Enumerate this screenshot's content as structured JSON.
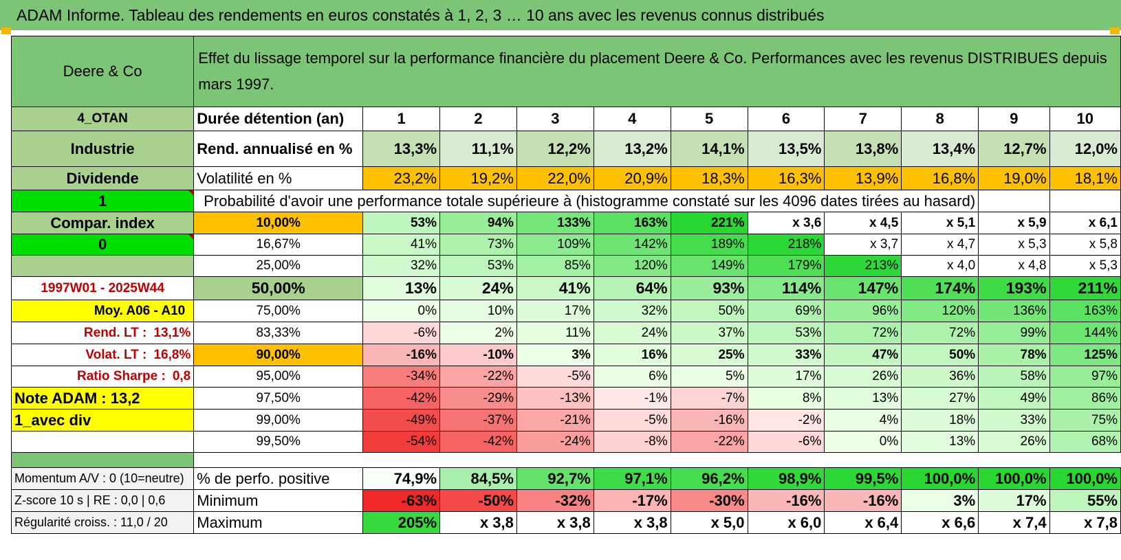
{
  "title": "ADAM Informe. Tableau des rendements en euros constatés à 1, 2, 3 … 10 ans avec les revenus connus distribués",
  "header": {
    "company": "Deere & Co",
    "description": "Effet du lissage temporel sur la performance financière du placement Deere & Co. Performances avec les revenus DISTRIBUES depuis mars 1997."
  },
  "side": {
    "code": "4_OTAN",
    "sector": "Industrie",
    "dividend": "Dividende",
    "flag1": "1",
    "compar_index": "Compar. index",
    "flag0": "0",
    "period": "1997W01 - 2025W44",
    "moy": "Moy. A06 - A10",
    "rend_lt_label": "Rend. LT :",
    "rend_lt_value": "13,1%",
    "volat_lt_label": "Volat. LT :",
    "volat_lt_value": "16,8%",
    "sharpe_label": "Ratio Sharpe :",
    "sharpe_value": "0,8",
    "note": "Note ADAM : 13,2",
    "avec_div": "1_avec div",
    "momentum": "Momentum A/V : 0 (10=neutre)",
    "zscore": "Z-score 10 s | RE : 0,0 | 0,6",
    "regularite": "Régularité croiss. : 11,0 / 20"
  },
  "years_label": "Durée détention (an)",
  "years": [
    "1",
    "2",
    "3",
    "4",
    "5",
    "6",
    "7",
    "8",
    "9",
    "10"
  ],
  "rend_label": "Rend. annualisé en %",
  "rend": [
    "13,3%",
    "11,1%",
    "12,2%",
    "13,2%",
    "14,1%",
    "13,5%",
    "13,8%",
    "13,4%",
    "12,7%",
    "12,0%"
  ],
  "vol_label": "Volatilité en %",
  "vol": [
    "23,2%",
    "19,2%",
    "22,0%",
    "20,9%",
    "18,3%",
    "16,3%",
    "13,9%",
    "16,8%",
    "19,0%",
    "18,1%"
  ],
  "prob_title": "Probabilité d'avoir une performance totale supérieure à (histogramme constaté sur les 4096 dates tirées au hasard)",
  "prob_rows": [
    {
      "p": "10,00%",
      "v": [
        "53%",
        "94%",
        "133%",
        "163%",
        "221%",
        "x 3,6",
        "x 4,5",
        "x 5,1",
        "x 5,9",
        "x 6,1"
      ]
    },
    {
      "p": "16,67%",
      "v": [
        "41%",
        "73%",
        "109%",
        "142%",
        "189%",
        "218%",
        "x 3,7",
        "x 4,7",
        "x 5,3",
        "x 5,8"
      ]
    },
    {
      "p": "25,00%",
      "v": [
        "32%",
        "53%",
        "85%",
        "120%",
        "149%",
        "179%",
        "213%",
        "x 4,0",
        "x 4,8",
        "x 5,3"
      ]
    },
    {
      "p": "50,00%",
      "v": [
        "13%",
        "24%",
        "41%",
        "64%",
        "93%",
        "114%",
        "147%",
        "174%",
        "193%",
        "211%"
      ]
    },
    {
      "p": "75,00%",
      "v": [
        "0%",
        "10%",
        "17%",
        "32%",
        "50%",
        "69%",
        "96%",
        "120%",
        "136%",
        "163%"
      ]
    },
    {
      "p": "83,33%",
      "v": [
        "-6%",
        "2%",
        "11%",
        "24%",
        "37%",
        "53%",
        "72%",
        "72%",
        "99%",
        "144%"
      ]
    },
    {
      "p": "90,00%",
      "v": [
        "-16%",
        "-10%",
        "3%",
        "16%",
        "25%",
        "33%",
        "47%",
        "50%",
        "78%",
        "125%"
      ]
    },
    {
      "p": "95,00%",
      "v": [
        "-34%",
        "-22%",
        "-5%",
        "6%",
        "5%",
        "17%",
        "26%",
        "36%",
        "58%",
        "97%"
      ]
    },
    {
      "p": "97,50%",
      "v": [
        "-42%",
        "-29%",
        "-13%",
        "-1%",
        "-7%",
        "8%",
        "13%",
        "27%",
        "49%",
        "86%"
      ]
    },
    {
      "p": "99,00%",
      "v": [
        "-49%",
        "-37%",
        "-21%",
        "-5%",
        "-16%",
        "-2%",
        "4%",
        "18%",
        "33%",
        "75%"
      ]
    },
    {
      "p": "99,50%",
      "v": [
        "-54%",
        "-42%",
        "-24%",
        "-8%",
        "-22%",
        "-6%",
        "0%",
        "13%",
        "26%",
        "68%"
      ]
    }
  ],
  "pos_label": "% de perfo. positive",
  "pos": [
    "74,9%",
    "84,5%",
    "92,7%",
    "97,1%",
    "96,2%",
    "98,9%",
    "99,5%",
    "100,0%",
    "100,0%",
    "100,0%"
  ],
  "min_label": "Minimum",
  "min": [
    "-63%",
    "-50%",
    "-32%",
    "-17%",
    "-30%",
    "-16%",
    "-16%",
    "3%",
    "17%",
    "55%"
  ],
  "max_label": "Maximum",
  "max": [
    "205%",
    "x 3,8",
    "x 3,8",
    "x 3,8",
    "x 5,0",
    "x 6,0",
    "x 6,4",
    "x 6,6",
    "x 7,4",
    "x 7,8"
  ],
  "colors": {
    "header_green": "#7cc576",
    "orange": "#ffc000",
    "yellow": "#ffff00",
    "bright_green": "#00dd00"
  }
}
